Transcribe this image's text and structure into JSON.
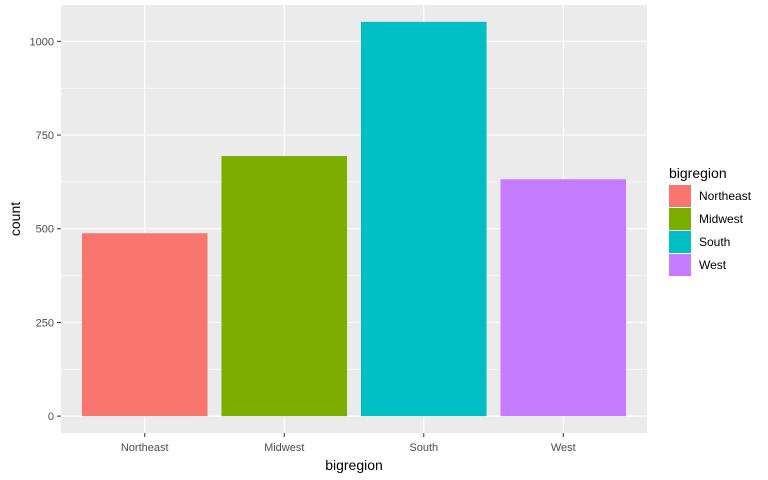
{
  "chart_data": {
    "type": "bar",
    "categories": [
      "Northeast",
      "Midwest",
      "South",
      "West"
    ],
    "values": [
      488,
      694,
      1052,
      632
    ],
    "colors": [
      "#F8766D",
      "#7CAE00",
      "#00BFC4",
      "#C77CFF"
    ],
    "xlabel": "bigregion",
    "ylabel": "count",
    "ylim": [
      -45,
      1097
    ],
    "yticks": [
      0,
      250,
      500,
      750,
      1000
    ],
    "ytick_labels": [
      "0",
      "250",
      "500",
      "750",
      "1000"
    ],
    "grid": true,
    "panel_background": "#EBEBEB",
    "grid_color": "#FFFFFF",
    "legend": {
      "title": "bigregion",
      "position": "right",
      "entries": [
        "Northeast",
        "Midwest",
        "South",
        "West"
      ]
    }
  }
}
